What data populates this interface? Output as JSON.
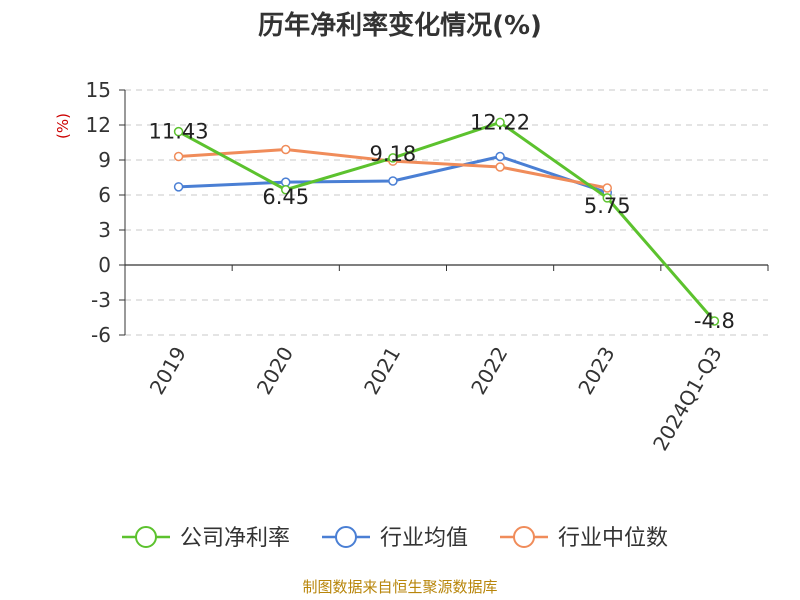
{
  "chart_data": {
    "type": "line",
    "title": "历年净利率变化情况(%)",
    "ylabel": "(%)",
    "categories": [
      "2019",
      "2020",
      "2021",
      "2022",
      "2023",
      "2024Q1-Q3"
    ],
    "yticks": [
      "15",
      "12",
      "9",
      "6",
      "3",
      "0",
      "-3",
      "-6"
    ],
    "ylim": [
      -6,
      15
    ],
    "grid": true,
    "legend_position": "bottom",
    "series": [
      {
        "name": "公司净利率",
        "values": [
          11.43,
          6.45,
          9.18,
          12.22,
          5.75,
          -4.8
        ],
        "labels": [
          "11.43",
          "6.45",
          "9.18",
          "12.22",
          "5.75",
          "-4.8"
        ],
        "color": "#5cc22e"
      },
      {
        "name": "行业均值",
        "values": [
          6.7,
          7.1,
          7.2,
          9.3,
          6.2,
          null
        ],
        "color": "#4a7fd4"
      },
      {
        "name": "行业中位数",
        "values": [
          9.3,
          9.9,
          8.9,
          8.4,
          6.6,
          null
        ],
        "color": "#f08c5a"
      }
    ]
  },
  "source": "制图数据来自恒生聚源数据库"
}
